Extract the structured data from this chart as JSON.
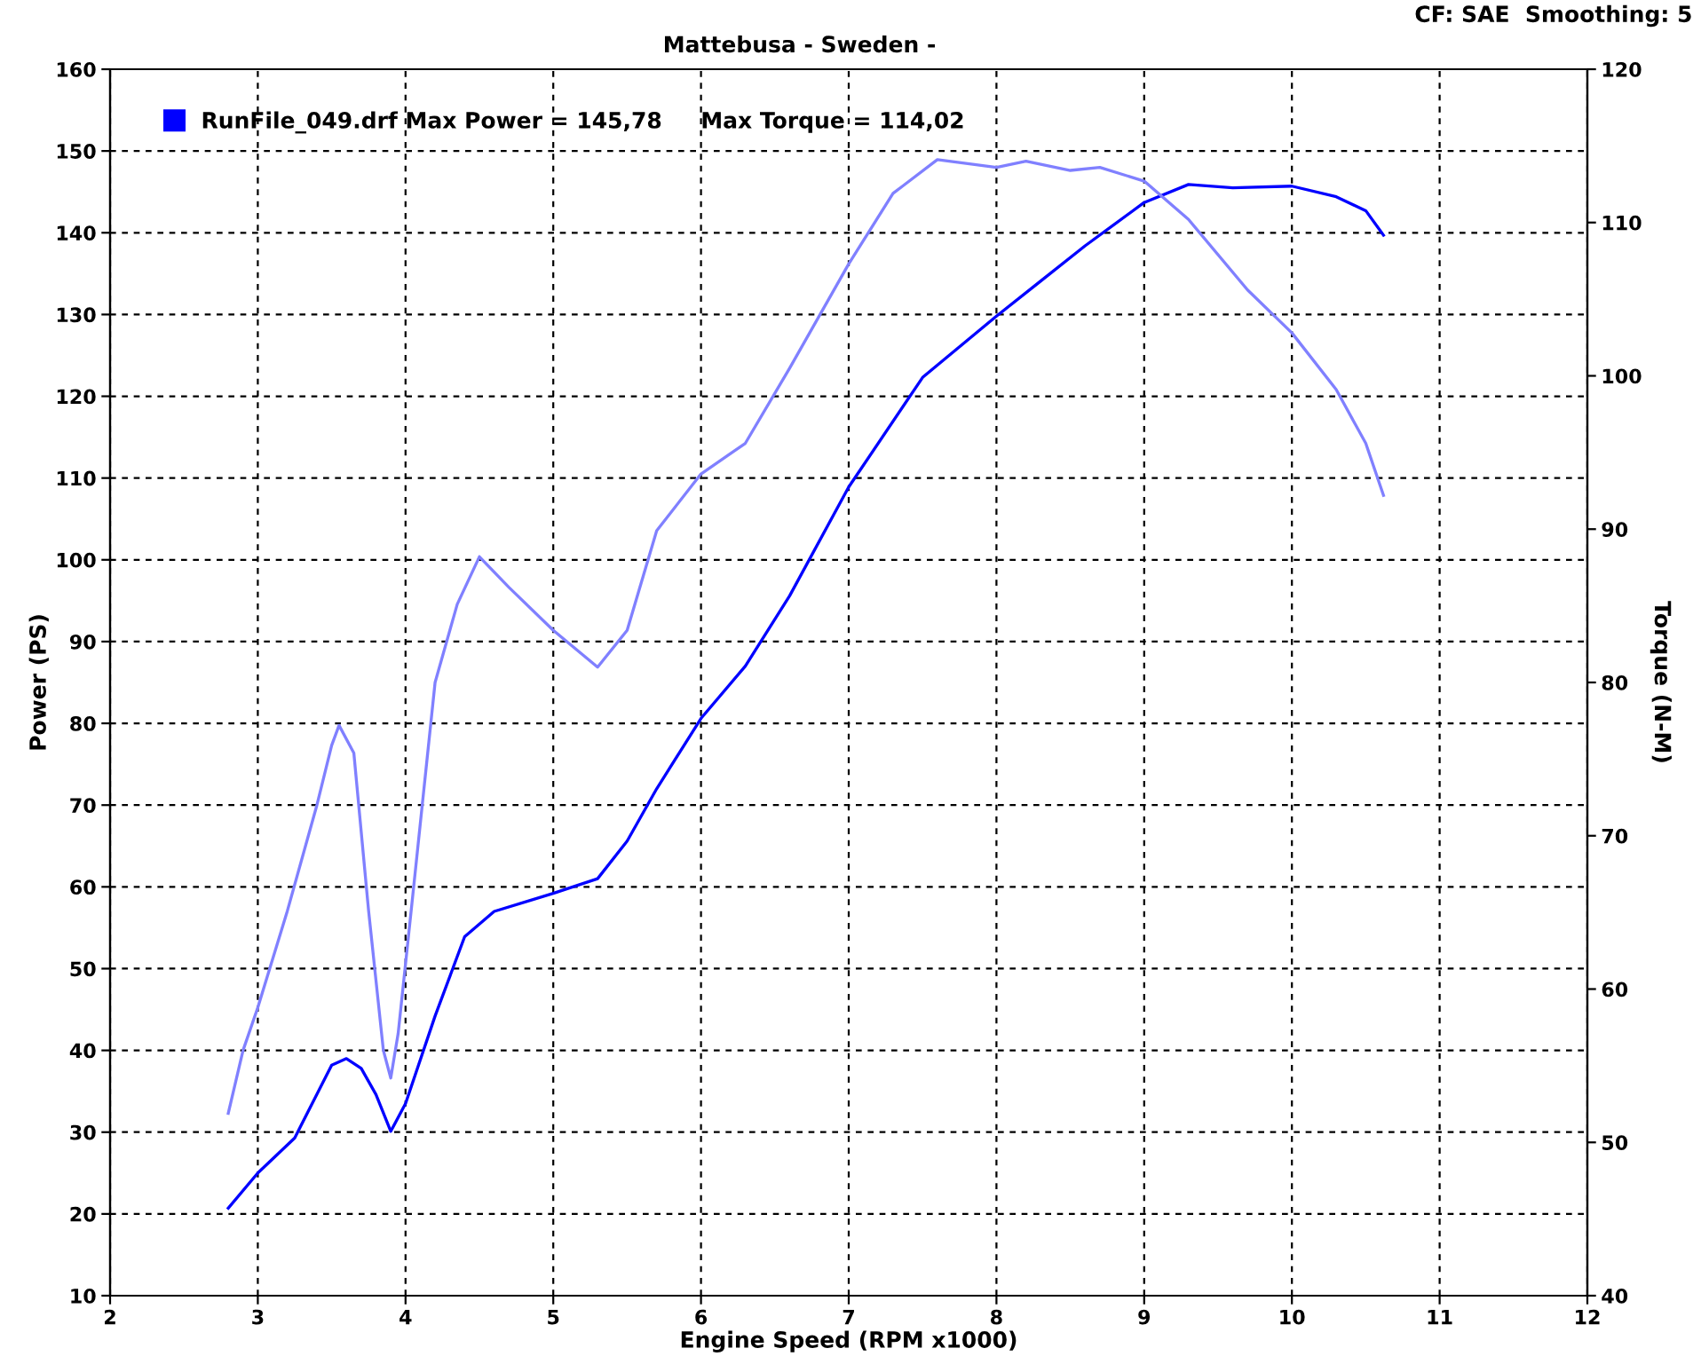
{
  "chart_data": {
    "type": "line",
    "subtitle": "Mattebusa - Sweden -",
    "xlabel": "Engine Speed (RPM x1000)",
    "ylabel": "Power (PS)",
    "y2label": "Torque (N-M)",
    "annotations": [
      "CF: SAE  Smoothing: 5"
    ],
    "xlim": [
      2,
      12
    ],
    "xticks": [
      2,
      3,
      4,
      5,
      6,
      7,
      8,
      9,
      10,
      11,
      12
    ],
    "ylim": [
      10,
      160
    ],
    "yticks": [
      10,
      20,
      30,
      40,
      50,
      60,
      70,
      80,
      90,
      100,
      110,
      120,
      130,
      140,
      150,
      160
    ],
    "y2lim": [
      40,
      120
    ],
    "y2ticks": [
      40,
      50,
      60,
      70,
      80,
      90,
      100,
      110,
      120
    ],
    "grid": true,
    "legend": "top left",
    "marker": "none",
    "line_style": "solid",
    "series": [
      {
        "name": "RunFile_049.drf Max Power = 145,78     Max Torque = 114,02",
        "color": "#0000ff",
        "x": [
          2.8,
          3.0,
          3.25,
          3.5,
          3.6,
          3.7,
          3.8,
          3.9,
          4.0,
          4.2,
          4.4,
          4.6,
          5.0,
          5.3,
          5.5,
          5.7,
          6.0,
          6.3,
          6.6,
          7.0,
          7.5,
          8.0,
          8.3,
          8.6,
          9.0,
          9.3,
          9.6,
          10.0,
          10.3,
          10.5,
          10.62
        ],
        "values": [
          20.7,
          25,
          29.3,
          38.2,
          39,
          37.8,
          34.6,
          30.1,
          33.5,
          44.2,
          53.9,
          57,
          59.2,
          61,
          65.6,
          72,
          80.6,
          87,
          95.6,
          108.9,
          122.3,
          129.8,
          134.1,
          138.4,
          143.7,
          145.9,
          145.5,
          145.7,
          144.4,
          142.7,
          139.7
        ]
      },
      {
        "color": "#8080ff",
        "axis": "y2",
        "x": [
          2.8,
          2.9,
          3.0,
          3.2,
          3.4,
          3.5,
          3.55,
          3.65,
          3.75,
          3.85,
          3.9,
          3.95,
          4.05,
          4.2,
          4.35,
          4.5,
          4.7,
          5.0,
          5.3,
          5.5,
          5.7,
          6.0,
          6.3,
          6.6,
          7.0,
          7.3,
          7.6,
          8.0,
          8.2,
          8.5,
          8.7,
          9.0,
          9.3,
          9.7,
          10.0,
          10.3,
          10.5,
          10.62
        ],
        "values": [
          51.9,
          56,
          58.8,
          65.1,
          72,
          75.9,
          77.2,
          75.4,
          65.1,
          56,
          54.2,
          57.1,
          66.2,
          80,
          85.1,
          88.2,
          86.2,
          83.4,
          81,
          83.4,
          89.9,
          93.6,
          95.6,
          100.5,
          107.3,
          111.9,
          114.1,
          113.6,
          114,
          113.4,
          113.6,
          112.7,
          110.2,
          105.6,
          102.8,
          99.1,
          95.6,
          92.2
        ]
      }
    ]
  }
}
